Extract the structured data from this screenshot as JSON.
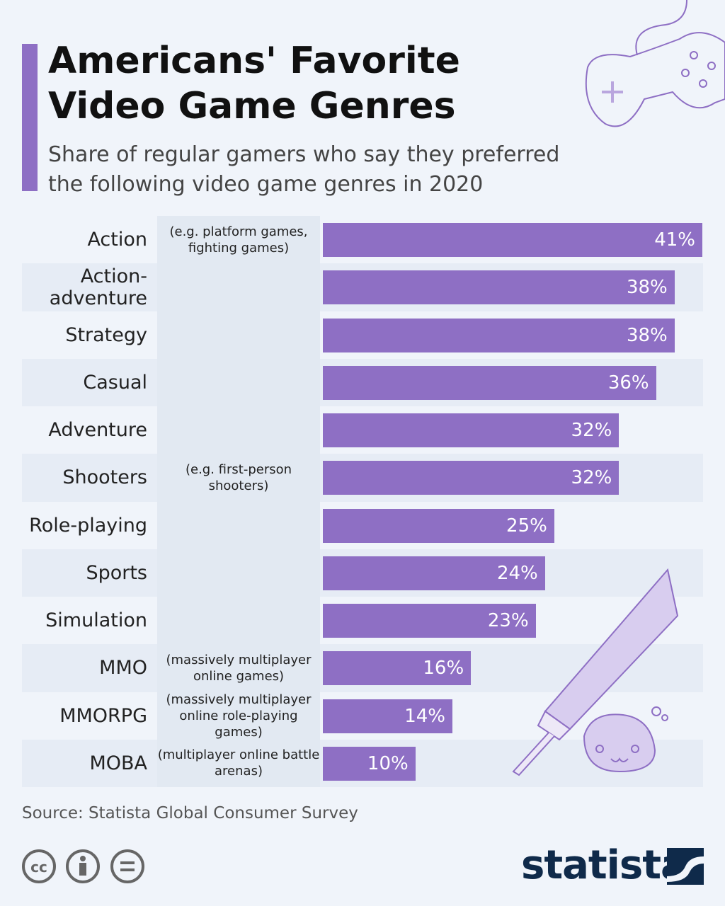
{
  "chart_data": {
    "type": "bar",
    "title": "Americans' Favorite Video Game Genres",
    "subtitle": "Share of regular gamers who say they preferred the following video game genres in 2020",
    "categories": [
      "Action",
      "Action-adventure",
      "Strategy",
      "Casual",
      "Adventure",
      "Shooters",
      "Role-playing",
      "Sports",
      "Simulation",
      "MMO",
      "MMORPG",
      "MOBA"
    ],
    "notes": [
      "(e.g. platform games, fighting games)",
      null,
      null,
      null,
      null,
      "(e.g. first-person shooters)",
      null,
      null,
      null,
      "(massively multiplayer online games)",
      "(massively multiplayer online role-playing games)",
      "(multiplayer online battle arenas)"
    ],
    "values": [
      41,
      38,
      38,
      36,
      32,
      32,
      25,
      24,
      23,
      16,
      14,
      10
    ],
    "value_labels": [
      "41%",
      "38%",
      "38%",
      "36%",
      "32%",
      "32%",
      "25%",
      "24%",
      "23%",
      "16%",
      "14%",
      "10%"
    ],
    "color": "#8e6fc4",
    "source": "Source: Statista Global Consumer Survey",
    "brand": "statista"
  }
}
